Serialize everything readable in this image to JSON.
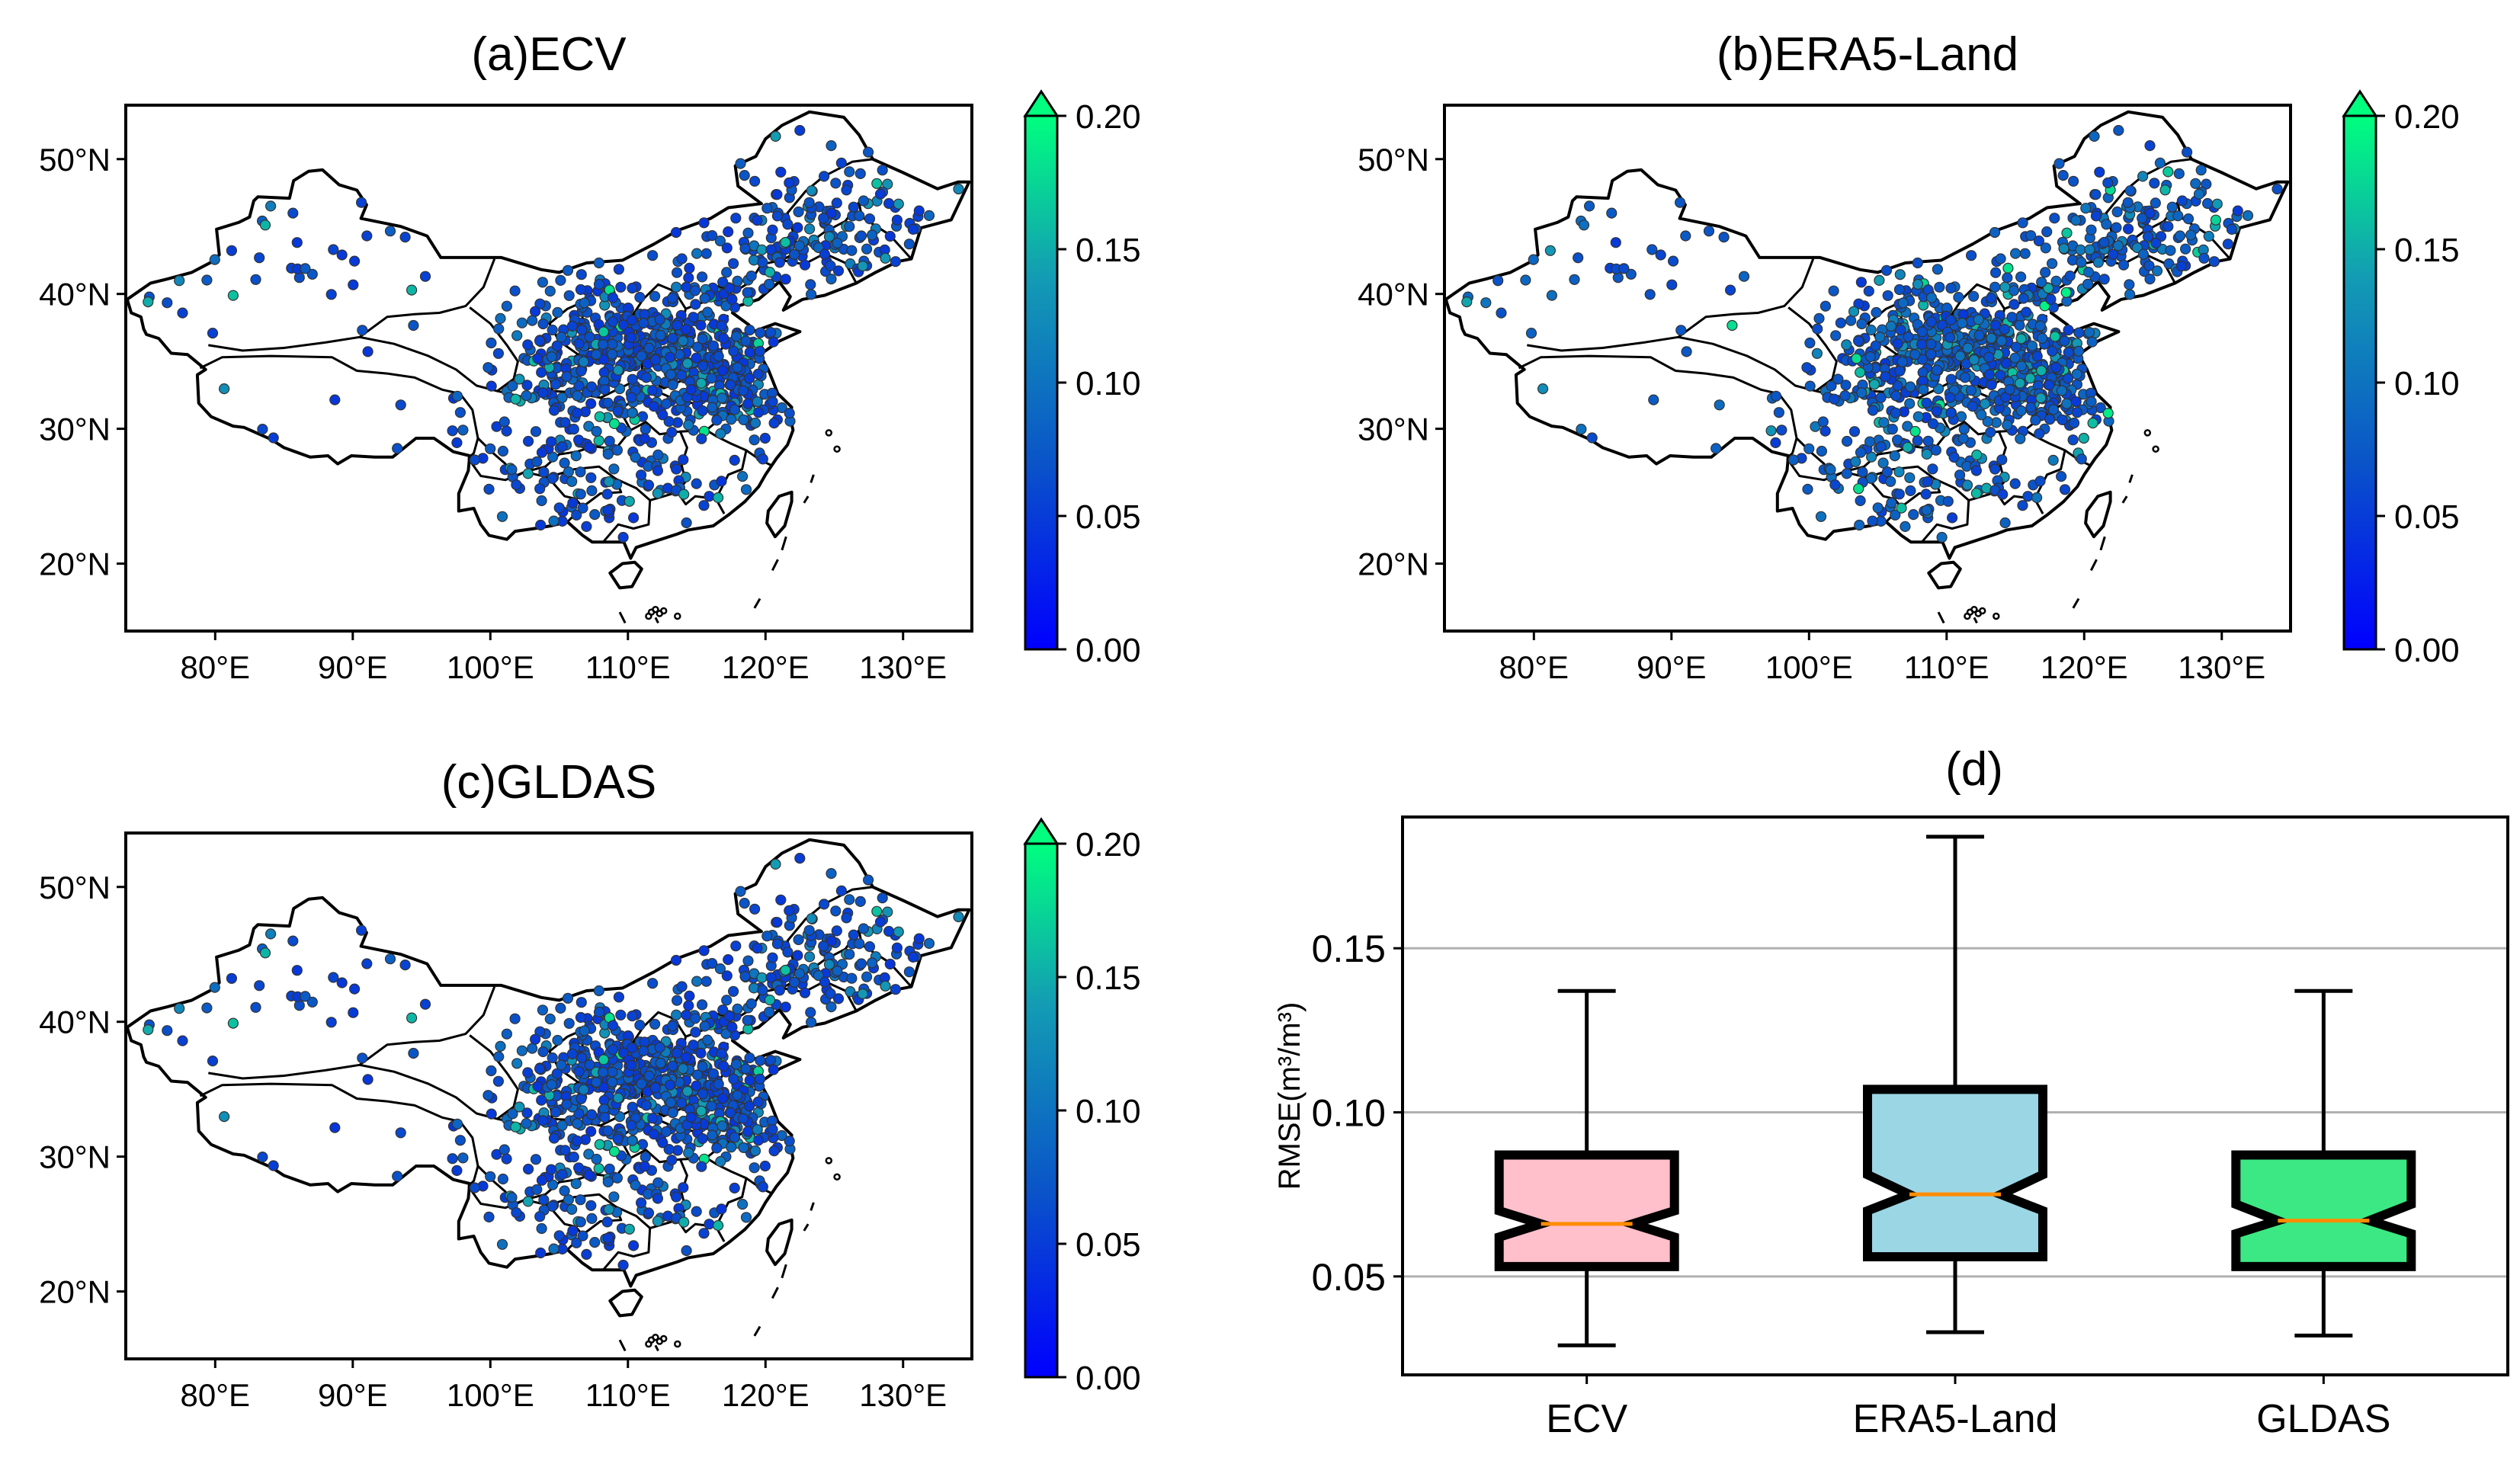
{
  "figure": {
    "panels": [
      {
        "id": "a",
        "title": "(a)ECV"
      },
      {
        "id": "b",
        "title": "(b)ERA5-Land"
      },
      {
        "id": "c",
        "title": "(c)GLDAS"
      }
    ],
    "lat_ticks": [
      "50°N",
      "40°N",
      "30°N",
      "20°N"
    ],
    "lon_ticks": [
      "80°E",
      "90°E",
      "100°E",
      "110°E",
      "120°E",
      "130°E"
    ],
    "colorbar": {
      "ticks": [
        "0.20",
        "0.15",
        "0.10",
        "0.05",
        "0.00"
      ],
      "colors": [
        "#0000ff",
        "#0a54c8",
        "#139cb4",
        "#00ff7f"
      ],
      "extend": "max"
    }
  },
  "chart_data": [
    {
      "type": "scatter",
      "title": "(a)ECV",
      "x_range_lon": [
        73.5,
        135
      ],
      "y_range_lat": [
        15,
        54
      ],
      "color_range": [
        0,
        0.2
      ],
      "seed": 11,
      "dense_bias": 0.0
    },
    {
      "type": "scatter",
      "title": "(b)ERA5-Land",
      "x_range_lon": [
        73.5,
        135
      ],
      "y_range_lat": [
        15,
        54
      ],
      "color_range": [
        0,
        0.2
      ],
      "seed": 23,
      "dense_bias": 0.02
    },
    {
      "type": "scatter",
      "title": "(c)GLDAS",
      "x_range_lon": [
        73.5,
        135
      ],
      "y_range_lat": [
        15,
        54
      ],
      "color_range": [
        0,
        0.2
      ],
      "seed": 11,
      "dense_bias": 0.0
    },
    {
      "type": "box",
      "title": "(d)",
      "ylabel": "RMSE(m³/m³)",
      "ylim": [
        0.02,
        0.19
      ],
      "yticks": [
        "0.05",
        "0.10",
        "0.15"
      ],
      "grid": true,
      "categories": [
        "ECV",
        "ERA5-Land",
        "GLDAS"
      ],
      "colors": [
        "#ffc0cb",
        "#9bd6e4",
        "#3ce883"
      ],
      "boxes": [
        {
          "name": "ECV",
          "whisker_low": 0.029,
          "q1": 0.053,
          "median": 0.066,
          "q3": 0.087,
          "whisker_high": 0.137,
          "notch": [
            0.062,
            0.07
          ]
        },
        {
          "name": "ERA5-Land",
          "whisker_low": 0.033,
          "q1": 0.056,
          "median": 0.075,
          "q3": 0.107,
          "whisker_high": 0.184,
          "notch": [
            0.07,
            0.081
          ]
        },
        {
          "name": "GLDAS",
          "whisker_low": 0.032,
          "q1": 0.053,
          "median": 0.067,
          "q3": 0.087,
          "whisker_high": 0.137,
          "notch": [
            0.063,
            0.072
          ]
        }
      ]
    }
  ]
}
